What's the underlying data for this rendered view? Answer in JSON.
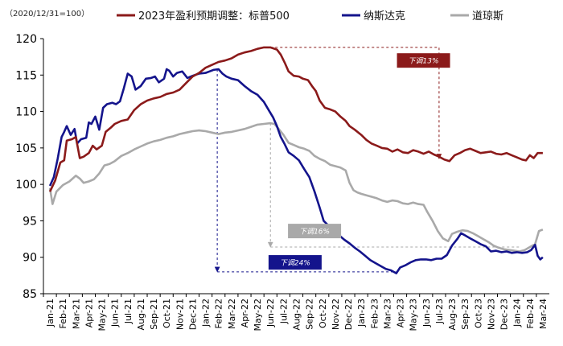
{
  "chart_data": {
    "type": "line",
    "note": "（2020/12/31=100）",
    "ylim": [
      85,
      120
    ],
    "yticks": [
      "85",
      "90",
      "95",
      "100",
      "105",
      "110",
      "115",
      "120"
    ],
    "categories": [
      "Jan-21",
      "Feb-21",
      "Mar-21",
      "Apr-21",
      "May-21",
      "Jun-21",
      "Jul-21",
      "Aug-21",
      "Sep-21",
      "Oct-21",
      "Nov-21",
      "Dec-21",
      "Jan-22",
      "Feb-22",
      "Mar-22",
      "Apr-22",
      "May-22",
      "Jun-22",
      "Jul-22",
      "Aug-22",
      "Sep-22",
      "Oct-22",
      "Nov-22",
      "Dec-22",
      "Jan-23",
      "Feb-23",
      "Mar-23",
      "Apr-23",
      "May-23",
      "Jun-23",
      "Jul-23",
      "Aug-23",
      "Sep-23",
      "Oct-23",
      "Nov-23",
      "Dec-23",
      "Jan-24",
      "Feb-24",
      "Mar-24"
    ],
    "grid": false,
    "legend_position": "top",
    "series": [
      {
        "name": "2023年盈利预期调整：标普500",
        "color": "#8B1A1A",
        "points": [
          [
            0,
            99
          ],
          [
            0.4,
            100.5
          ],
          [
            0.8,
            103
          ],
          [
            1.1,
            103.3
          ],
          [
            1.3,
            106
          ],
          [
            1.7,
            106.2
          ],
          [
            2.0,
            106.5
          ],
          [
            2.3,
            103.6
          ],
          [
            2.6,
            103.8
          ],
          [
            3.0,
            104.3
          ],
          [
            3.3,
            105.3
          ],
          [
            3.6,
            104.8
          ],
          [
            4.0,
            105.3
          ],
          [
            4.3,
            107.2
          ],
          [
            4.7,
            107.8
          ],
          [
            5.0,
            108.3
          ],
          [
            5.5,
            108.7
          ],
          [
            6.0,
            108.9
          ],
          [
            6.5,
            110.2
          ],
          [
            7.0,
            111
          ],
          [
            7.5,
            111.5
          ],
          [
            8.0,
            111.8
          ],
          [
            8.5,
            112
          ],
          [
            9.0,
            112.4
          ],
          [
            9.5,
            112.6
          ],
          [
            10.0,
            113
          ],
          [
            10.5,
            113.9
          ],
          [
            11.0,
            114.8
          ],
          [
            11.5,
            115.3
          ],
          [
            12.0,
            116
          ],
          [
            12.5,
            116.4
          ],
          [
            13.0,
            116.8
          ],
          [
            13.5,
            117
          ],
          [
            14.0,
            117.3
          ],
          [
            14.5,
            117.8
          ],
          [
            15.0,
            118.1
          ],
          [
            15.5,
            118.3
          ],
          [
            16.0,
            118.6
          ],
          [
            16.5,
            118.8
          ],
          [
            17.0,
            118.8
          ],
          [
            17.5,
            118.5
          ],
          [
            17.8,
            117.8
          ],
          [
            18.1,
            116.7
          ],
          [
            18.4,
            115.5
          ],
          [
            18.8,
            114.9
          ],
          [
            19.2,
            114.8
          ],
          [
            19.5,
            114.5
          ],
          [
            19.9,
            114.3
          ],
          [
            20.2,
            113.5
          ],
          [
            20.5,
            112.8
          ],
          [
            20.8,
            111.5
          ],
          [
            21.2,
            110.5
          ],
          [
            21.6,
            110.3
          ],
          [
            22.0,
            110
          ],
          [
            22.4,
            109.3
          ],
          [
            22.8,
            108.7
          ],
          [
            23.1,
            108
          ],
          [
            23.5,
            107.5
          ],
          [
            24.0,
            106.8
          ],
          [
            24.4,
            106.1
          ],
          [
            24.8,
            105.6
          ],
          [
            25.2,
            105.3
          ],
          [
            25.6,
            105
          ],
          [
            26.0,
            104.9
          ],
          [
            26.4,
            104.5
          ],
          [
            26.8,
            104.8
          ],
          [
            27.2,
            104.4
          ],
          [
            27.6,
            104.3
          ],
          [
            28.0,
            104.7
          ],
          [
            28.4,
            104.5
          ],
          [
            28.8,
            104.2
          ],
          [
            29.2,
            104.5
          ],
          [
            29.6,
            104.1
          ],
          [
            30.0,
            103.8
          ],
          [
            30.4,
            103.4
          ],
          [
            30.8,
            103.2
          ],
          [
            31.2,
            104
          ],
          [
            31.6,
            104.3
          ],
          [
            32.0,
            104.7
          ],
          [
            32.4,
            104.9
          ],
          [
            32.8,
            104.6
          ],
          [
            33.2,
            104.3
          ],
          [
            33.6,
            104.4
          ],
          [
            34.0,
            104.5
          ],
          [
            34.4,
            104.2
          ],
          [
            34.8,
            104.1
          ],
          [
            35.2,
            104.3
          ],
          [
            35.6,
            104
          ],
          [
            36.0,
            103.7
          ],
          [
            36.4,
            103.4
          ],
          [
            36.7,
            103.3
          ],
          [
            37.0,
            104
          ],
          [
            37.3,
            103.6
          ],
          [
            37.6,
            104.3
          ],
          [
            38.0,
            104.3
          ]
        ]
      },
      {
        "name": "纳斯达克",
        "color": "#14148C",
        "points": [
          [
            0,
            99.8
          ],
          [
            0.3,
            101
          ],
          [
            0.6,
            103.5
          ],
          [
            0.9,
            106.5
          ],
          [
            1.1,
            107.2
          ],
          [
            1.3,
            108
          ],
          [
            1.6,
            106.8
          ],
          [
            1.9,
            107.6
          ],
          [
            2.1,
            105.6
          ],
          [
            2.4,
            106.2
          ],
          [
            2.8,
            106.4
          ],
          [
            3.0,
            108.5
          ],
          [
            3.2,
            108.3
          ],
          [
            3.5,
            109.3
          ],
          [
            3.8,
            107.5
          ],
          [
            4.1,
            110.5
          ],
          [
            4.4,
            111
          ],
          [
            4.8,
            111.2
          ],
          [
            5.1,
            111
          ],
          [
            5.4,
            111.4
          ],
          [
            5.7,
            113.2
          ],
          [
            6.0,
            115.2
          ],
          [
            6.3,
            114.8
          ],
          [
            6.6,
            113
          ],
          [
            7.0,
            113.5
          ],
          [
            7.4,
            114.5
          ],
          [
            7.8,
            114.6
          ],
          [
            8.1,
            114.8
          ],
          [
            8.4,
            114
          ],
          [
            8.8,
            114.5
          ],
          [
            9.0,
            115.8
          ],
          [
            9.2,
            115.6
          ],
          [
            9.5,
            114.8
          ],
          [
            9.8,
            115.3
          ],
          [
            10.2,
            115.5
          ],
          [
            10.6,
            114.6
          ],
          [
            11.0,
            114.9
          ],
          [
            11.5,
            115.2
          ],
          [
            12.0,
            115.3
          ],
          [
            12.3,
            115.5
          ],
          [
            12.6,
            115.7
          ],
          [
            13.0,
            115.8
          ],
          [
            13.3,
            115.2
          ],
          [
            13.6,
            114.8
          ],
          [
            14.0,
            114.5
          ],
          [
            14.5,
            114.3
          ],
          [
            15.0,
            113.5
          ],
          [
            15.5,
            112.8
          ],
          [
            16.0,
            112.3
          ],
          [
            16.5,
            111.3
          ],
          [
            16.9,
            110.1
          ],
          [
            17.2,
            109.2
          ],
          [
            17.5,
            108
          ],
          [
            17.8,
            106.5
          ],
          [
            18.1,
            105.5
          ],
          [
            18.4,
            104.4
          ],
          [
            18.8,
            103.9
          ],
          [
            19.2,
            103.3
          ],
          [
            19.6,
            102.1
          ],
          [
            20.0,
            101
          ],
          [
            20.4,
            99
          ],
          [
            20.8,
            96.8
          ],
          [
            21.1,
            95
          ],
          [
            21.5,
            94.3
          ],
          [
            21.9,
            93.8
          ],
          [
            22.3,
            93
          ],
          [
            22.7,
            92.4
          ],
          [
            23.1,
            91.9
          ],
          [
            23.5,
            91.3
          ],
          [
            23.9,
            90.8
          ],
          [
            24.3,
            90.2
          ],
          [
            24.7,
            89.6
          ],
          [
            25.1,
            89.2
          ],
          [
            25.5,
            88.8
          ],
          [
            25.9,
            88.4
          ],
          [
            26.3,
            88.2
          ],
          [
            26.7,
            87.8
          ],
          [
            27.0,
            88.6
          ],
          [
            27.4,
            88.9
          ],
          [
            27.8,
            89.3
          ],
          [
            28.2,
            89.6
          ],
          [
            28.6,
            89.7
          ],
          [
            29.0,
            89.7
          ],
          [
            29.4,
            89.6
          ],
          [
            29.8,
            89.8
          ],
          [
            30.2,
            89.8
          ],
          [
            30.6,
            90.3
          ],
          [
            31.0,
            91.6
          ],
          [
            31.4,
            92.5
          ],
          [
            31.7,
            93.3
          ],
          [
            32.0,
            93
          ],
          [
            32.4,
            92.6
          ],
          [
            32.8,
            92.2
          ],
          [
            33.2,
            91.8
          ],
          [
            33.6,
            91.5
          ],
          [
            34.0,
            90.8
          ],
          [
            34.4,
            90.9
          ],
          [
            34.8,
            90.7
          ],
          [
            35.2,
            90.8
          ],
          [
            35.6,
            90.6
          ],
          [
            36.0,
            90.7
          ],
          [
            36.4,
            90.6
          ],
          [
            36.8,
            90.7
          ],
          [
            37.1,
            91
          ],
          [
            37.4,
            91.7
          ],
          [
            37.6,
            90.2
          ],
          [
            37.8,
            89.7
          ],
          [
            38.0,
            90
          ]
        ]
      },
      {
        "name": "道琼斯",
        "color": "#A9A9A9",
        "points": [
          [
            0,
            99.5
          ],
          [
            0.2,
            97.3
          ],
          [
            0.5,
            99
          ],
          [
            1.0,
            99.9
          ],
          [
            1.5,
            100.4
          ],
          [
            2.0,
            101.2
          ],
          [
            2.3,
            100.8
          ],
          [
            2.6,
            100.2
          ],
          [
            3.0,
            100.4
          ],
          [
            3.4,
            100.7
          ],
          [
            3.8,
            101.5
          ],
          [
            4.2,
            102.6
          ],
          [
            4.6,
            102.8
          ],
          [
            5.0,
            103.2
          ],
          [
            5.5,
            103.9
          ],
          [
            6.0,
            104.3
          ],
          [
            6.5,
            104.8
          ],
          [
            7.0,
            105.2
          ],
          [
            7.5,
            105.6
          ],
          [
            8.0,
            105.9
          ],
          [
            8.5,
            106.1
          ],
          [
            9.0,
            106.4
          ],
          [
            9.5,
            106.6
          ],
          [
            10.0,
            106.9
          ],
          [
            10.5,
            107.1
          ],
          [
            11.0,
            107.3
          ],
          [
            11.5,
            107.4
          ],
          [
            12.0,
            107.3
          ],
          [
            12.5,
            107.1
          ],
          [
            13.0,
            106.9
          ],
          [
            13.5,
            107.1
          ],
          [
            14.0,
            107.2
          ],
          [
            14.5,
            107.4
          ],
          [
            15.0,
            107.6
          ],
          [
            15.5,
            107.9
          ],
          [
            16.0,
            108.2
          ],
          [
            16.5,
            108.3
          ],
          [
            17.0,
            108.4
          ],
          [
            17.3,
            108.3
          ],
          [
            17.6,
            107.7
          ],
          [
            18.0,
            106.8
          ],
          [
            18.4,
            105.7
          ],
          [
            18.8,
            105.4
          ],
          [
            19.2,
            105.1
          ],
          [
            19.6,
            104.9
          ],
          [
            20.0,
            104.6
          ],
          [
            20.4,
            103.9
          ],
          [
            20.8,
            103.5
          ],
          [
            21.2,
            103.2
          ],
          [
            21.6,
            102.7
          ],
          [
            22.0,
            102.5
          ],
          [
            22.4,
            102.3
          ],
          [
            22.8,
            101.9
          ],
          [
            23.1,
            100.2
          ],
          [
            23.4,
            99.2
          ],
          [
            23.7,
            98.9
          ],
          [
            24.0,
            98.7
          ],
          [
            24.4,
            98.5
          ],
          [
            24.8,
            98.3
          ],
          [
            25.2,
            98.1
          ],
          [
            25.6,
            97.8
          ],
          [
            26.0,
            97.6
          ],
          [
            26.4,
            97.8
          ],
          [
            26.8,
            97.7
          ],
          [
            27.2,
            97.4
          ],
          [
            27.6,
            97.3
          ],
          [
            28.0,
            97.5
          ],
          [
            28.4,
            97.3
          ],
          [
            28.8,
            97.2
          ],
          [
            29.1,
            96.2
          ],
          [
            29.5,
            95
          ],
          [
            29.9,
            93.6
          ],
          [
            30.3,
            92.6
          ],
          [
            30.7,
            92.2
          ],
          [
            31.0,
            93.2
          ],
          [
            31.4,
            93.5
          ],
          [
            31.8,
            93.7
          ],
          [
            32.2,
            93.6
          ],
          [
            32.6,
            93.3
          ],
          [
            33.0,
            92.9
          ],
          [
            33.4,
            92.5
          ],
          [
            33.8,
            92.1
          ],
          [
            34.2,
            91.6
          ],
          [
            34.6,
            91.3
          ],
          [
            35.0,
            91.1
          ],
          [
            35.4,
            91
          ],
          [
            35.8,
            90.9
          ],
          [
            36.2,
            90.8
          ],
          [
            36.6,
            91
          ],
          [
            37.0,
            91.4
          ],
          [
            37.4,
            91.8
          ],
          [
            37.7,
            93.6
          ],
          [
            38.0,
            93.8
          ]
        ]
      }
    ],
    "annotations": [
      {
        "label": "下调13%",
        "series": "2023年盈利预期调整：标普500",
        "color": "#8B1A1A",
        "peak": [
          17.0,
          118.8
        ],
        "trough": [
          30.0,
          103.5
        ],
        "label_at": [
          28.8,
          117.0
        ]
      },
      {
        "label": "下调16%",
        "series": "道琼斯",
        "color": "#A9A9A9",
        "peak": [
          17.0,
          108.4
        ],
        "trough": [
          36.2,
          91.4
        ],
        "label_at": [
          20.4,
          93.6
        ]
      },
      {
        "label": "下调24%",
        "series": "纳斯达克",
        "color": "#14148C",
        "peak": [
          12.9,
          115.8
        ],
        "trough": [
          26.7,
          88.0
        ],
        "label_at": [
          18.9,
          89.3
        ]
      }
    ]
  }
}
